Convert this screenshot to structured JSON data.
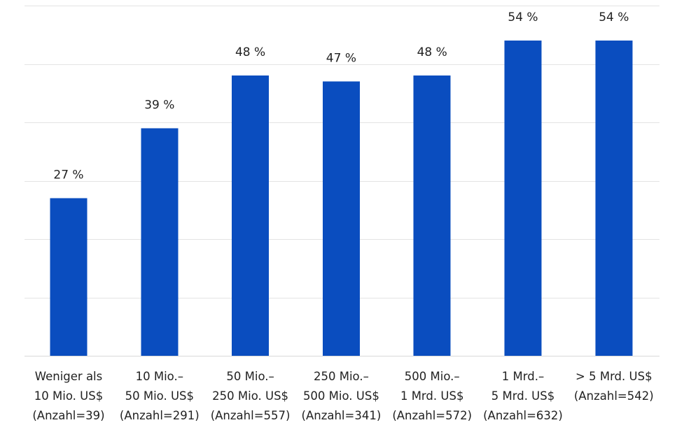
{
  "chart_data": {
    "type": "bar",
    "title": "",
    "xlabel": "",
    "ylabel": "",
    "ylim": [
      0,
      60
    ],
    "grid": true,
    "legend": "none",
    "categories": [
      [
        "Weniger als",
        "10 Mio. US$",
        "(Anzahl=39)"
      ],
      [
        "10 Mio.–",
        "50 Mio. US$",
        "(Anzahl=291)"
      ],
      [
        "50 Mio.–",
        "250 Mio. US$",
        "(Anzahl=557)"
      ],
      [
        "250 Mio.–",
        "500 Mio. US$",
        "(Anzahl=341)"
      ],
      [
        "500 Mio.–",
        "1 Mrd. US$",
        "(Anzahl=572)"
      ],
      [
        "1 Mrd.–",
        "5 Mrd. US$",
        "(Anzahl=632)"
      ],
      [
        "> 5 Mrd. US$",
        "(Anzahl=542)"
      ]
    ],
    "values": [
      27,
      39,
      48,
      47,
      48,
      54,
      54
    ],
    "data_labels": [
      "27 %",
      "39 %",
      "48 %",
      "47 %",
      "48 %",
      "54 %",
      "54 %"
    ],
    "colors": {
      "bar": "#0a4dbf",
      "grid": "#e3e3e3",
      "text": "#222222"
    }
  }
}
